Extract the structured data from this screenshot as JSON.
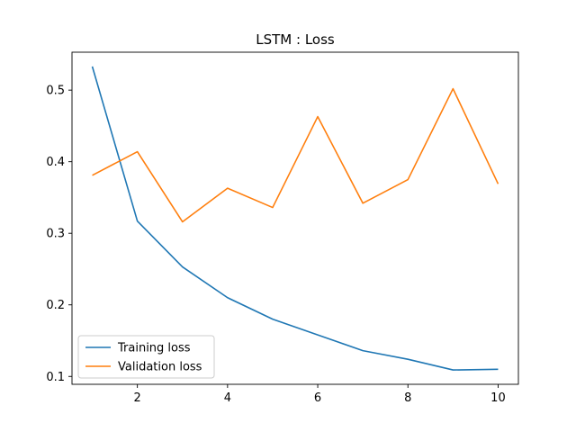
{
  "chart_data": {
    "type": "line",
    "title": "LSTM : Loss",
    "xlabel": "",
    "ylabel": "",
    "x": [
      1,
      2,
      3,
      4,
      5,
      6,
      7,
      8,
      9,
      10
    ],
    "xlim": [
      0.55,
      10.45
    ],
    "ylim": [
      0.089,
      0.553
    ],
    "xticks": [
      2,
      4,
      6,
      8,
      10
    ],
    "yticks": [
      0.1,
      0.2,
      0.3,
      0.4,
      0.5
    ],
    "xtick_labels": [
      "2",
      "4",
      "6",
      "8",
      "10"
    ],
    "ytick_labels": [
      "0.1",
      "0.2",
      "0.3",
      "0.4",
      "0.5"
    ],
    "grid": false,
    "legend_position": "lower-left",
    "series": [
      {
        "name": "Training loss",
        "color": "#1f77b4",
        "values": [
          0.533,
          0.317,
          0.253,
          0.21,
          0.18,
          0.158,
          0.136,
          0.124,
          0.109,
          0.11
        ]
      },
      {
        "name": "Validation loss",
        "color": "#ff7f0e",
        "values": [
          0.381,
          0.414,
          0.316,
          0.363,
          0.336,
          0.463,
          0.342,
          0.375,
          0.502,
          0.369
        ]
      }
    ]
  }
}
